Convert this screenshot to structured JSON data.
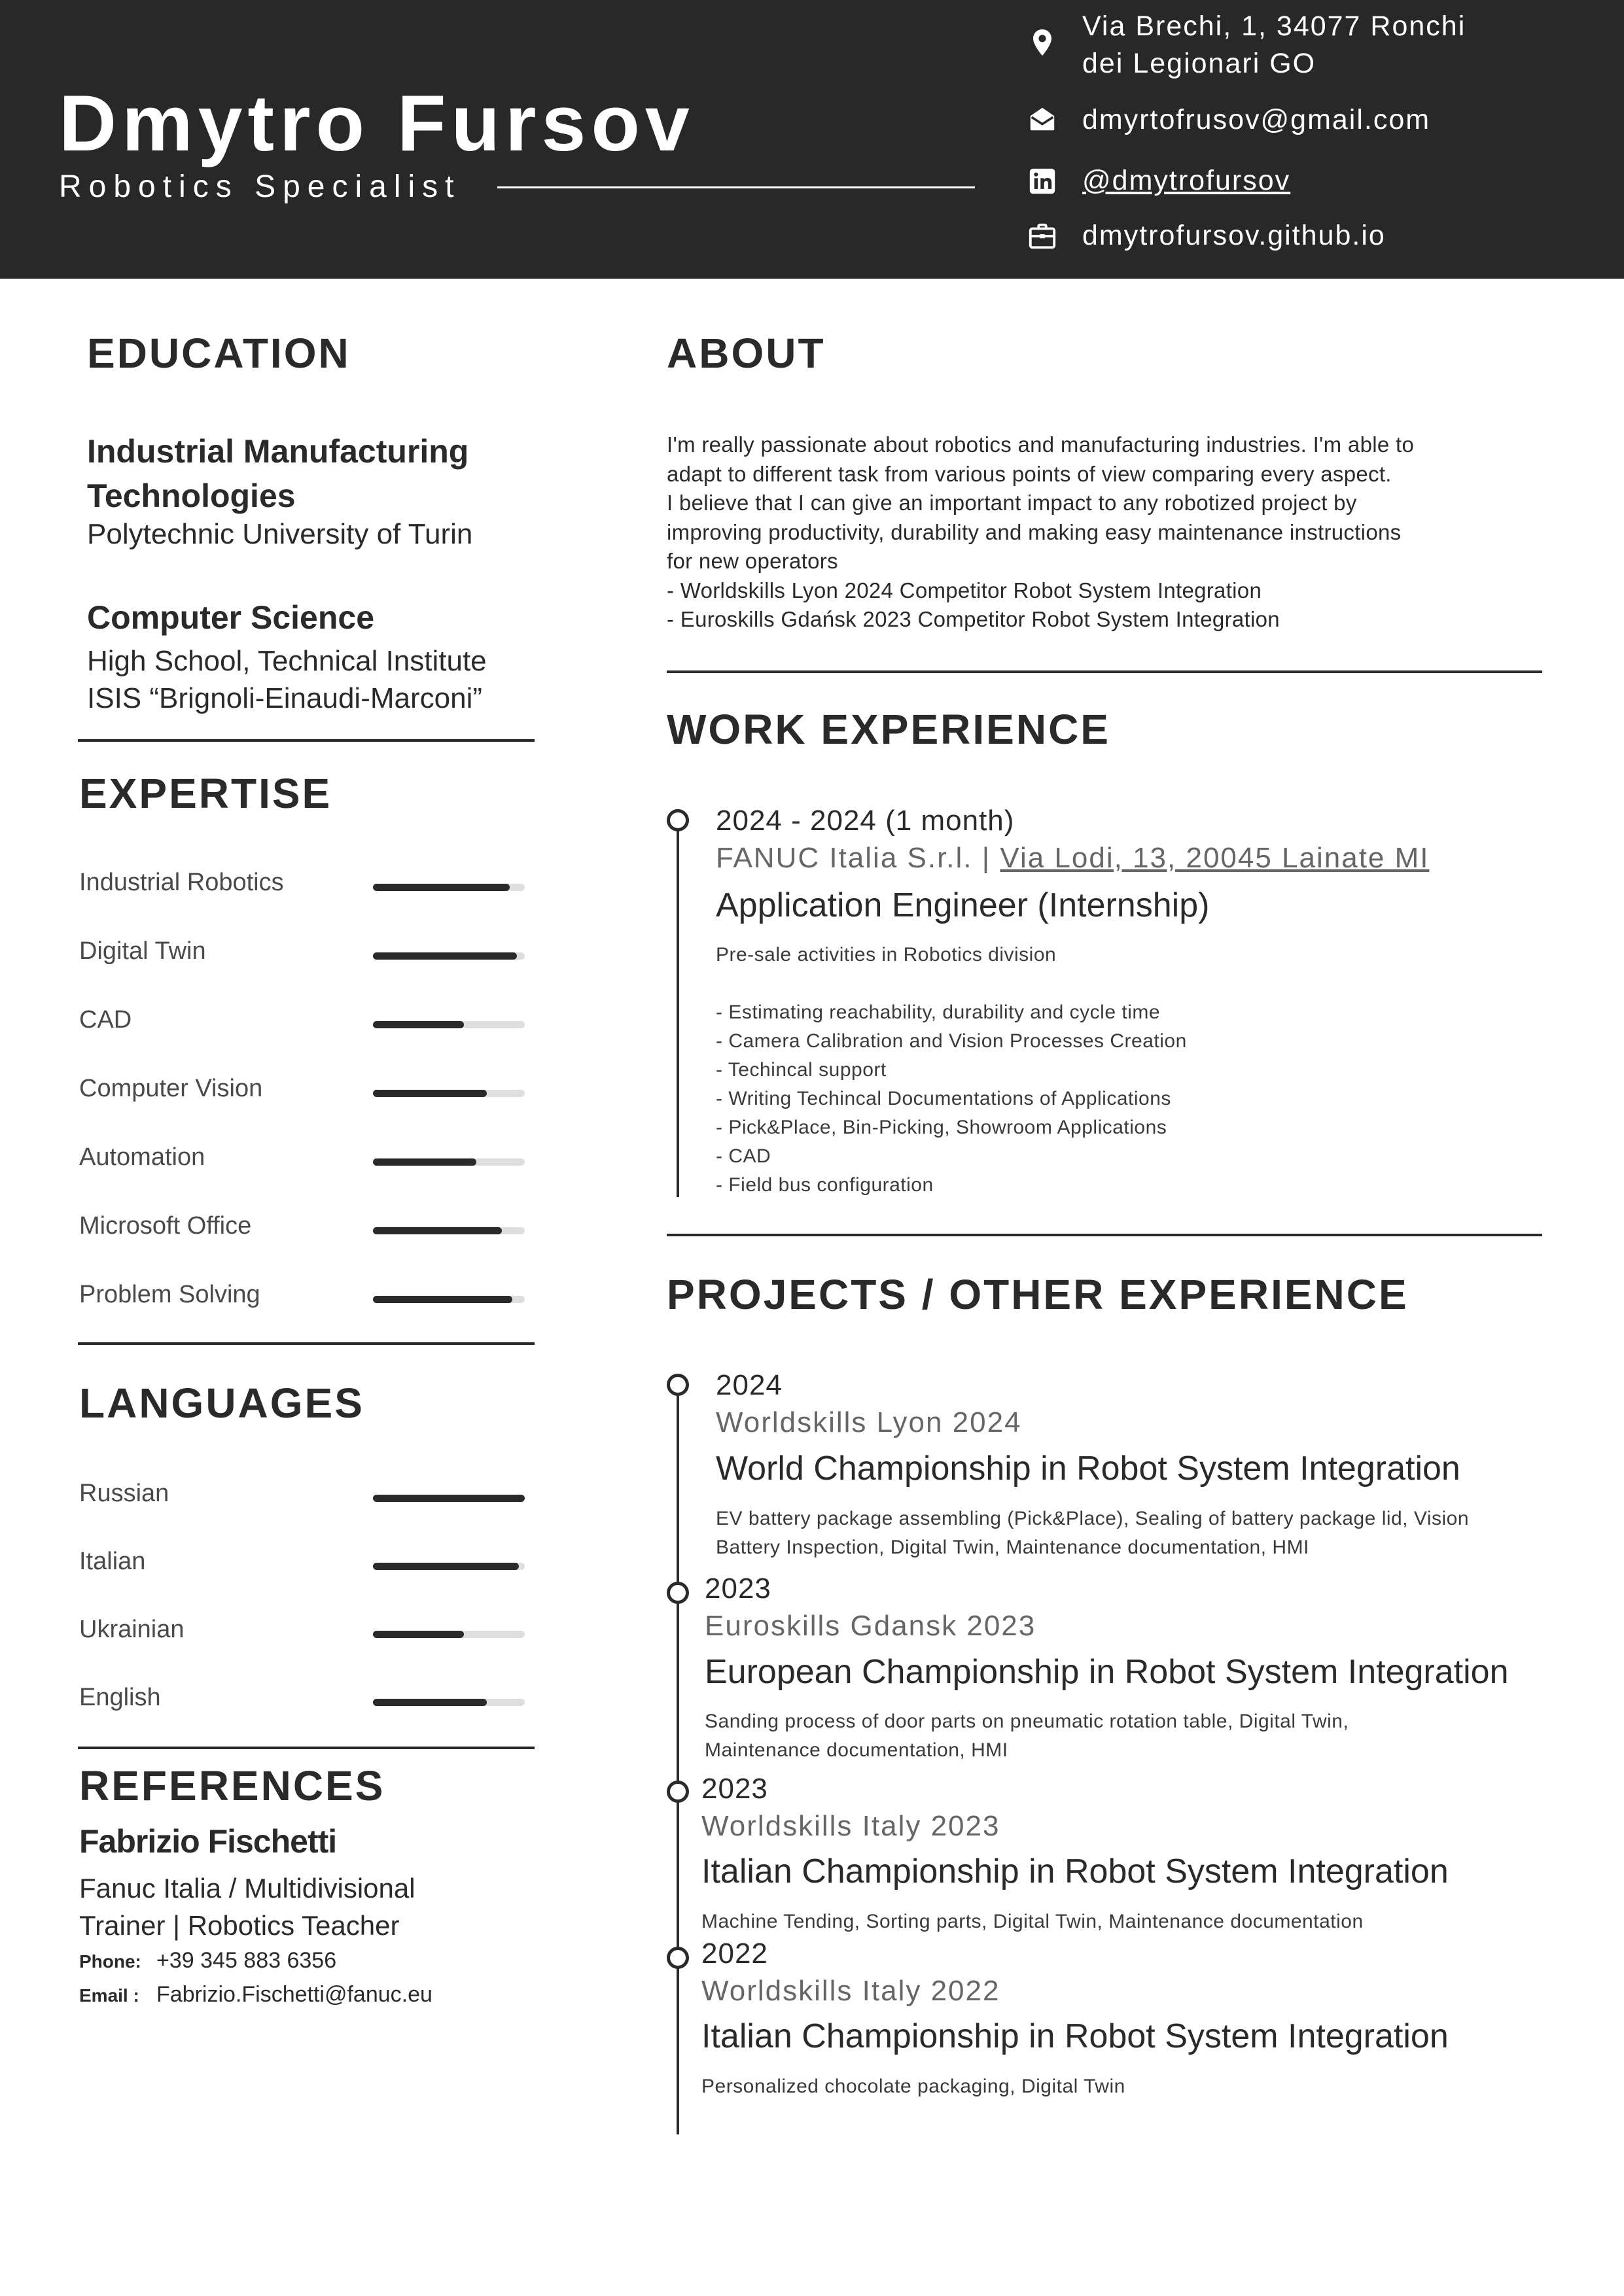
{
  "header": {
    "name": "Dmytro Fursov",
    "role": "Robotics Specialist",
    "contacts": [
      {
        "icon": "location-pin-icon",
        "text_line1": "Via Brechi, 1, 34077 Ronchi",
        "text_line2": "dei Legionari GO"
      },
      {
        "icon": "mail-icon",
        "text": "dmyrtofrusov@gmail.com"
      },
      {
        "icon": "linkedin-icon",
        "text": "@dmytrofursov"
      },
      {
        "icon": "briefcase-icon",
        "text": "dmytrofursov.github.io"
      }
    ]
  },
  "education": {
    "heading": "EDUCATION",
    "items": [
      {
        "title_line1": "Industrial Manufacturing",
        "title_line2": "Technologies",
        "sub_line1": "Polytechnic University of Turin"
      },
      {
        "title_line1": "Computer Science",
        "sub_line1": "High School, Technical Institute",
        "sub_line2": "ISIS “Brignoli-Einaudi-Marconi”"
      }
    ]
  },
  "expertise": {
    "heading": "EXPERTISE",
    "items": [
      {
        "label": "Industrial Robotics",
        "level": 0.9
      },
      {
        "label": "Digital Twin",
        "level": 0.95
      },
      {
        "label": "CAD",
        "level": 0.6
      },
      {
        "label": "Computer Vision",
        "level": 0.75
      },
      {
        "label": "Automation",
        "level": 0.68
      },
      {
        "label": "Microsoft Office",
        "level": 0.85
      },
      {
        "label": "Problem Solving",
        "level": 0.92
      }
    ]
  },
  "languages": {
    "heading": "LANGUAGES",
    "items": [
      {
        "label": "Russian",
        "level": 1.0
      },
      {
        "label": "Italian",
        "level": 0.96
      },
      {
        "label": "Ukrainian",
        "level": 0.6
      },
      {
        "label": "English",
        "level": 0.75
      }
    ]
  },
  "references": {
    "heading": "REFERENCES",
    "name": "Fabrizio Fischetti",
    "org_line1": "Fanuc Italia / Multidivisional",
    "org_line2": "Trainer | Robotics Teacher",
    "phone_label": "Phone:",
    "phone": "+39 345 883 6356",
    "email_label": "Email :",
    "email": "Fabrizio.Fischetti@fanuc.eu"
  },
  "about": {
    "heading": "ABOUT",
    "lines": [
      "I'm really passionate about robotics and manufacturing industries. I'm able to",
      "adapt to different task from various points of view comparing every aspect.",
      "I believe that I can give an important impact to any robotized project by",
      "improving productivity, durability and making easy maintenance instructions",
      "for new operators",
      "- Worldskills Lyon 2024 Competitor Robot System Integration",
      "- Euroskills Gdańsk 2023 Competitor Robot System Integration"
    ]
  },
  "work": {
    "heading": "WORK EXPERIENCE",
    "items": [
      {
        "period": "2024 - 2024 (1 month)",
        "org": "FANUC Italia S.r.l. | ",
        "org_link": "Via Lodi, 13, 20045 Lainate MI",
        "role": "Application Engineer (Internship)",
        "summary": "Pre-sale activities in Robotics division",
        "bullets": [
          "- Estimating reachability, durability and cycle time",
          "- Camera Calibration and Vision Processes Creation",
          "- Techincal support",
          "- Writing Techincal Documentations of Applications",
          "- Pick&Place, Bin-Picking, Showroom Applications",
          "- CAD",
          "- Field bus configuration"
        ]
      }
    ]
  },
  "projects": {
    "heading": "PROJECTS / OTHER EXPERIENCE",
    "items": [
      {
        "year": "2024",
        "org": "Worldskills Lyon 2024",
        "title": "World Championship in Robot System Integration",
        "desc_line1": "EV battery package assembling (Pick&Place), Sealing of battery package lid, Vision",
        "desc_line2": "Battery Inspection, Digital Twin, Maintenance documentation, HMI"
      },
      {
        "year": "2023",
        "org": "Euroskills Gdansk 2023",
        "title": "European Championship in Robot System Integration",
        "desc_line1": "Sanding process of door parts on pneumatic rotation table, Digital Twin,",
        "desc_line2": "Maintenance documentation, HMI"
      },
      {
        "year": "2023",
        "org": "Worldskills Italy 2023",
        "title": "Italian Championship in Robot System Integration",
        "desc_line1": "Machine Tending, Sorting parts, Digital Twin, Maintenance documentation"
      },
      {
        "year": "2022",
        "org": "Worldskills Italy 2022",
        "title": "Italian Championship in Robot System Integration",
        "desc_line1": "Personalized chocolate packaging, Digital Twin"
      }
    ]
  }
}
